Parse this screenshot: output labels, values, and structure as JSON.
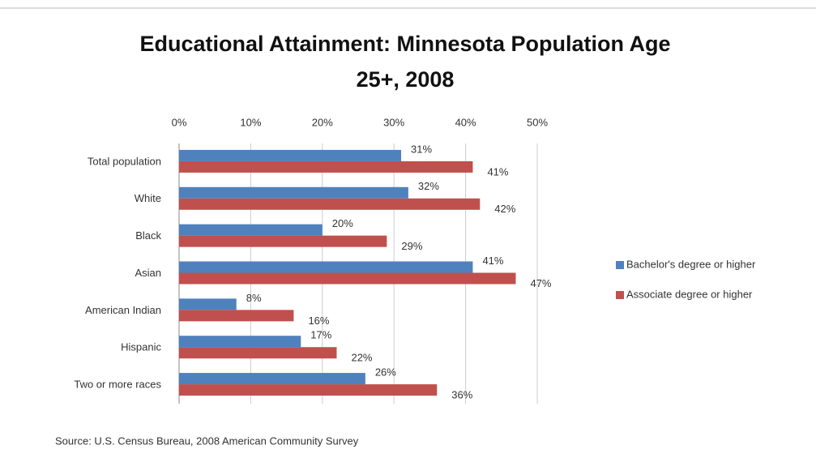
{
  "chart_data": {
    "type": "hbar",
    "title": "Educational Attainment: Minnesota Population Age 25+, 2008",
    "categories": [
      "Total population",
      "White",
      "Black",
      "Asian",
      "American Indian",
      "Hispanic",
      "Two or more races"
    ],
    "series": [
      {
        "name": "Bachelor's degree or higher",
        "color": "#4f81bd",
        "values": [
          31,
          32,
          20,
          41,
          8,
          17,
          26
        ],
        "value_labels": [
          "31%",
          "32%",
          "20%",
          "41%",
          "8%",
          "17%",
          "26%"
        ]
      },
      {
        "name": "Associate degree or higher",
        "color": "#c0504d",
        "values": [
          41,
          42,
          29,
          47,
          16,
          22,
          36
        ],
        "value_labels": [
          "41%",
          "42%",
          "29%",
          "47%",
          "16%",
          "22%",
          "36%"
        ]
      }
    ],
    "xlim": [
      0,
      50
    ],
    "xticks": [
      {
        "value": 0,
        "label": "0%"
      },
      {
        "value": 10,
        "label": "10%"
      },
      {
        "value": 20,
        "label": "20%"
      },
      {
        "value": 30,
        "label": "30%"
      },
      {
        "value": 40,
        "label": "40%"
      },
      {
        "value": 50,
        "label": "50%"
      }
    ],
    "grid": true,
    "legend": "right",
    "source": "Source: U.S. Census Bureau, 2008 American Community Survey"
  }
}
